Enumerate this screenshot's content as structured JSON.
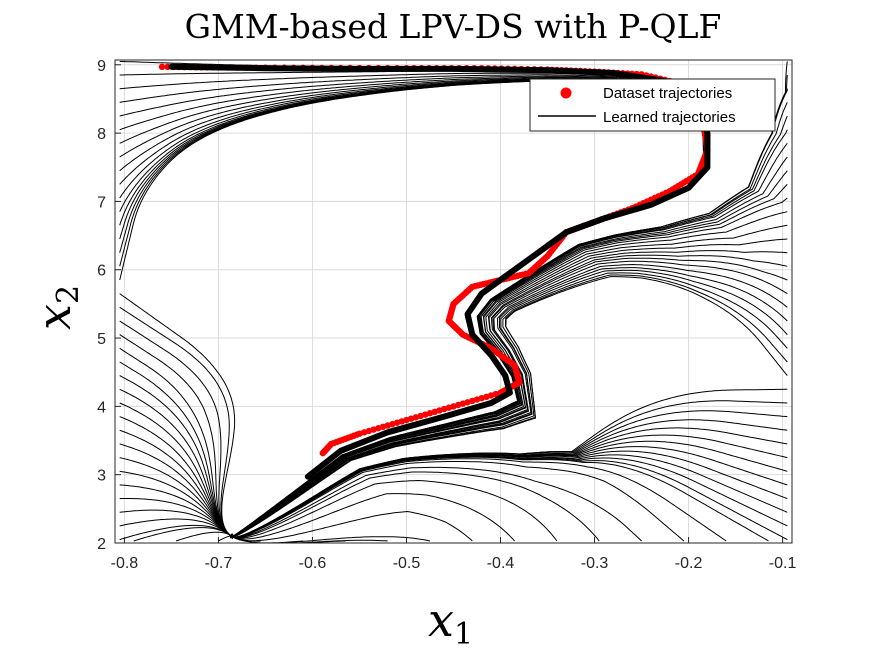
{
  "chart_data": {
    "type": "line",
    "title": "GMM-based LPV-DS with P-QLF",
    "xlabel": {
      "symbol": "x",
      "subscript": "1"
    },
    "ylabel": {
      "symbol": "x",
      "subscript": "2"
    },
    "xlim": [
      -0.81,
      -0.09
    ],
    "ylim": [
      2.0,
      9.07
    ],
    "xticks": [
      -0.8,
      -0.7,
      -0.6,
      -0.5,
      -0.4,
      -0.3,
      -0.2,
      -0.1
    ],
    "xtick_labels": [
      "-0.8",
      "-0.7",
      "-0.6",
      "-0.5",
      "-0.4",
      "-0.3",
      "-0.2",
      "-0.1"
    ],
    "yticks": [
      2,
      3,
      4,
      5,
      6,
      7,
      8,
      9
    ],
    "ytick_labels": [
      "2",
      "3",
      "4",
      "5",
      "6",
      "7",
      "8",
      "9"
    ],
    "grid": true,
    "legend": {
      "placement": "top-right",
      "entries": [
        {
          "label": "Dataset trajectories",
          "marker": "dot",
          "color": "#ff0000"
        },
        {
          "label": "Learned trajectories",
          "marker": "line",
          "color": "#000000"
        }
      ]
    },
    "series": [
      {
        "name": "Dataset trajectories",
        "style": "markers",
        "color": "#ff0000",
        "x": [
          -0.76,
          -0.7,
          -0.6,
          -0.5,
          -0.42,
          -0.35,
          -0.3,
          -0.25,
          -0.2,
          -0.185,
          -0.18,
          -0.19,
          -0.22,
          -0.26,
          -0.3,
          -0.33,
          -0.35,
          -0.37,
          -0.4,
          -0.43,
          -0.45,
          -0.455,
          -0.44,
          -0.41,
          -0.385,
          -0.38,
          -0.4,
          -0.45,
          -0.5,
          -0.55,
          -0.58,
          -0.59
        ],
        "y": [
          8.97,
          8.96,
          8.955,
          8.95,
          8.95,
          8.93,
          8.9,
          8.86,
          8.7,
          8.2,
          7.75,
          7.4,
          7.15,
          6.9,
          6.7,
          6.55,
          6.2,
          5.95,
          5.85,
          5.75,
          5.5,
          5.25,
          5.05,
          4.85,
          4.6,
          4.35,
          4.2,
          4.0,
          3.8,
          3.6,
          3.45,
          3.3
        ]
      },
      {
        "name": "Learned trajectories",
        "style": "thick-line",
        "color": "#000000",
        "x": [
          -0.75,
          -0.65,
          -0.55,
          -0.45,
          -0.35,
          -0.28,
          -0.22,
          -0.19,
          -0.18,
          -0.18,
          -0.2,
          -0.24,
          -0.29,
          -0.33,
          -0.36,
          -0.39,
          -0.42,
          -0.435,
          -0.43,
          -0.41,
          -0.395,
          -0.39,
          -0.41,
          -0.46,
          -0.52,
          -0.57,
          -0.605
        ],
        "y": [
          8.97,
          8.95,
          8.94,
          8.94,
          8.92,
          8.88,
          8.75,
          8.4,
          8.0,
          7.5,
          7.2,
          6.95,
          6.75,
          6.55,
          6.25,
          5.95,
          5.65,
          5.35,
          5.05,
          4.75,
          4.45,
          4.2,
          4.05,
          3.85,
          3.62,
          3.35,
          2.97
        ]
      }
    ],
    "streamlines": {
      "type": "vector-field",
      "color": "#000000"
    }
  }
}
